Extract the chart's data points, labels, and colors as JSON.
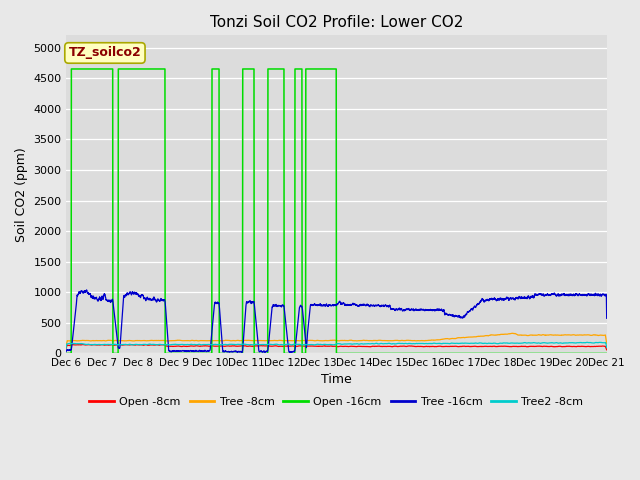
{
  "title": "Tonzi Soil CO2 Profile: Lower CO2",
  "xlabel": "Time",
  "ylabel": "Soil CO2 (ppm)",
  "ylim": [
    0,
    5200
  ],
  "xlim": [
    6,
    21
  ],
  "xticks": [
    6,
    7,
    8,
    9,
    10,
    11,
    12,
    13,
    14,
    15,
    16,
    17,
    18,
    19,
    20,
    21
  ],
  "xtick_labels": [
    "Dec 6",
    "Dec 7",
    "Dec 8",
    "Dec 9",
    "Dec 10",
    "Dec 11",
    "Dec 12",
    "Dec 13",
    "Dec 14",
    "Dec 15",
    "Dec 16",
    "Dec 17",
    "Dec 18",
    "Dec 19",
    "Dec 20",
    "Dec 21"
  ],
  "yticks": [
    0,
    500,
    1000,
    1500,
    2000,
    2500,
    3000,
    3500,
    4000,
    4500,
    5000
  ],
  "fig_bg_color": "#e8e8e8",
  "plot_bg_color": "#dcdcdc",
  "legend_box_color": "#ffffc0",
  "legend_text_color": "#8b0000",
  "legend_box_label": "TZ_soilco2",
  "green_peak": 4650,
  "series": [
    {
      "label": "Open -8cm",
      "color": "#ff0000"
    },
    {
      "label": "Tree -8cm",
      "color": "#ffa500"
    },
    {
      "label": "Open -16cm",
      "color": "#00dd00"
    },
    {
      "label": "Tree -16cm",
      "color": "#0000cc"
    },
    {
      "label": "Tree2 -8cm",
      "color": "#00cccc"
    }
  ]
}
